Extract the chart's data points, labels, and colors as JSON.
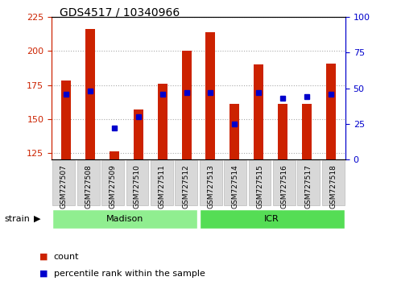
{
  "title": "GDS4517 / 10340966",
  "samples": [
    "GSM727507",
    "GSM727508",
    "GSM727509",
    "GSM727510",
    "GSM727511",
    "GSM727512",
    "GSM727513",
    "GSM727514",
    "GSM727515",
    "GSM727516",
    "GSM727517",
    "GSM727518"
  ],
  "count_values": [
    178,
    216,
    126,
    157,
    176,
    200,
    214,
    161,
    190,
    161,
    161,
    191
  ],
  "percentile_values": [
    46,
    48,
    22,
    30,
    46,
    47,
    47,
    25,
    47,
    43,
    44,
    46
  ],
  "count_color": "#cc2200",
  "percentile_color": "#0000cc",
  "ylim_left": [
    120,
    225
  ],
  "ylim_right": [
    0,
    100
  ],
  "yticks_left": [
    125,
    150,
    175,
    200,
    225
  ],
  "yticks_right": [
    0,
    25,
    50,
    75,
    100
  ],
  "bar_width": 0.4,
  "group_labels": [
    "Madison",
    "ICR"
  ],
  "group_ranges": [
    [
      0,
      5
    ],
    [
      6,
      11
    ]
  ],
  "group_colors": [
    "#90ee90",
    "#55dd55"
  ],
  "strain_label": "strain",
  "legend_count": "count",
  "legend_percentile": "percentile rank within the sample",
  "left_axis_color": "#cc2200",
  "right_axis_color": "#0000cc",
  "grid_color": "#aaaaaa",
  "axis_bg_color": "#ffffff",
  "label_box_color": "#d8d8d8",
  "label_box_edge": "#bbbbbb",
  "bar_base": 120
}
